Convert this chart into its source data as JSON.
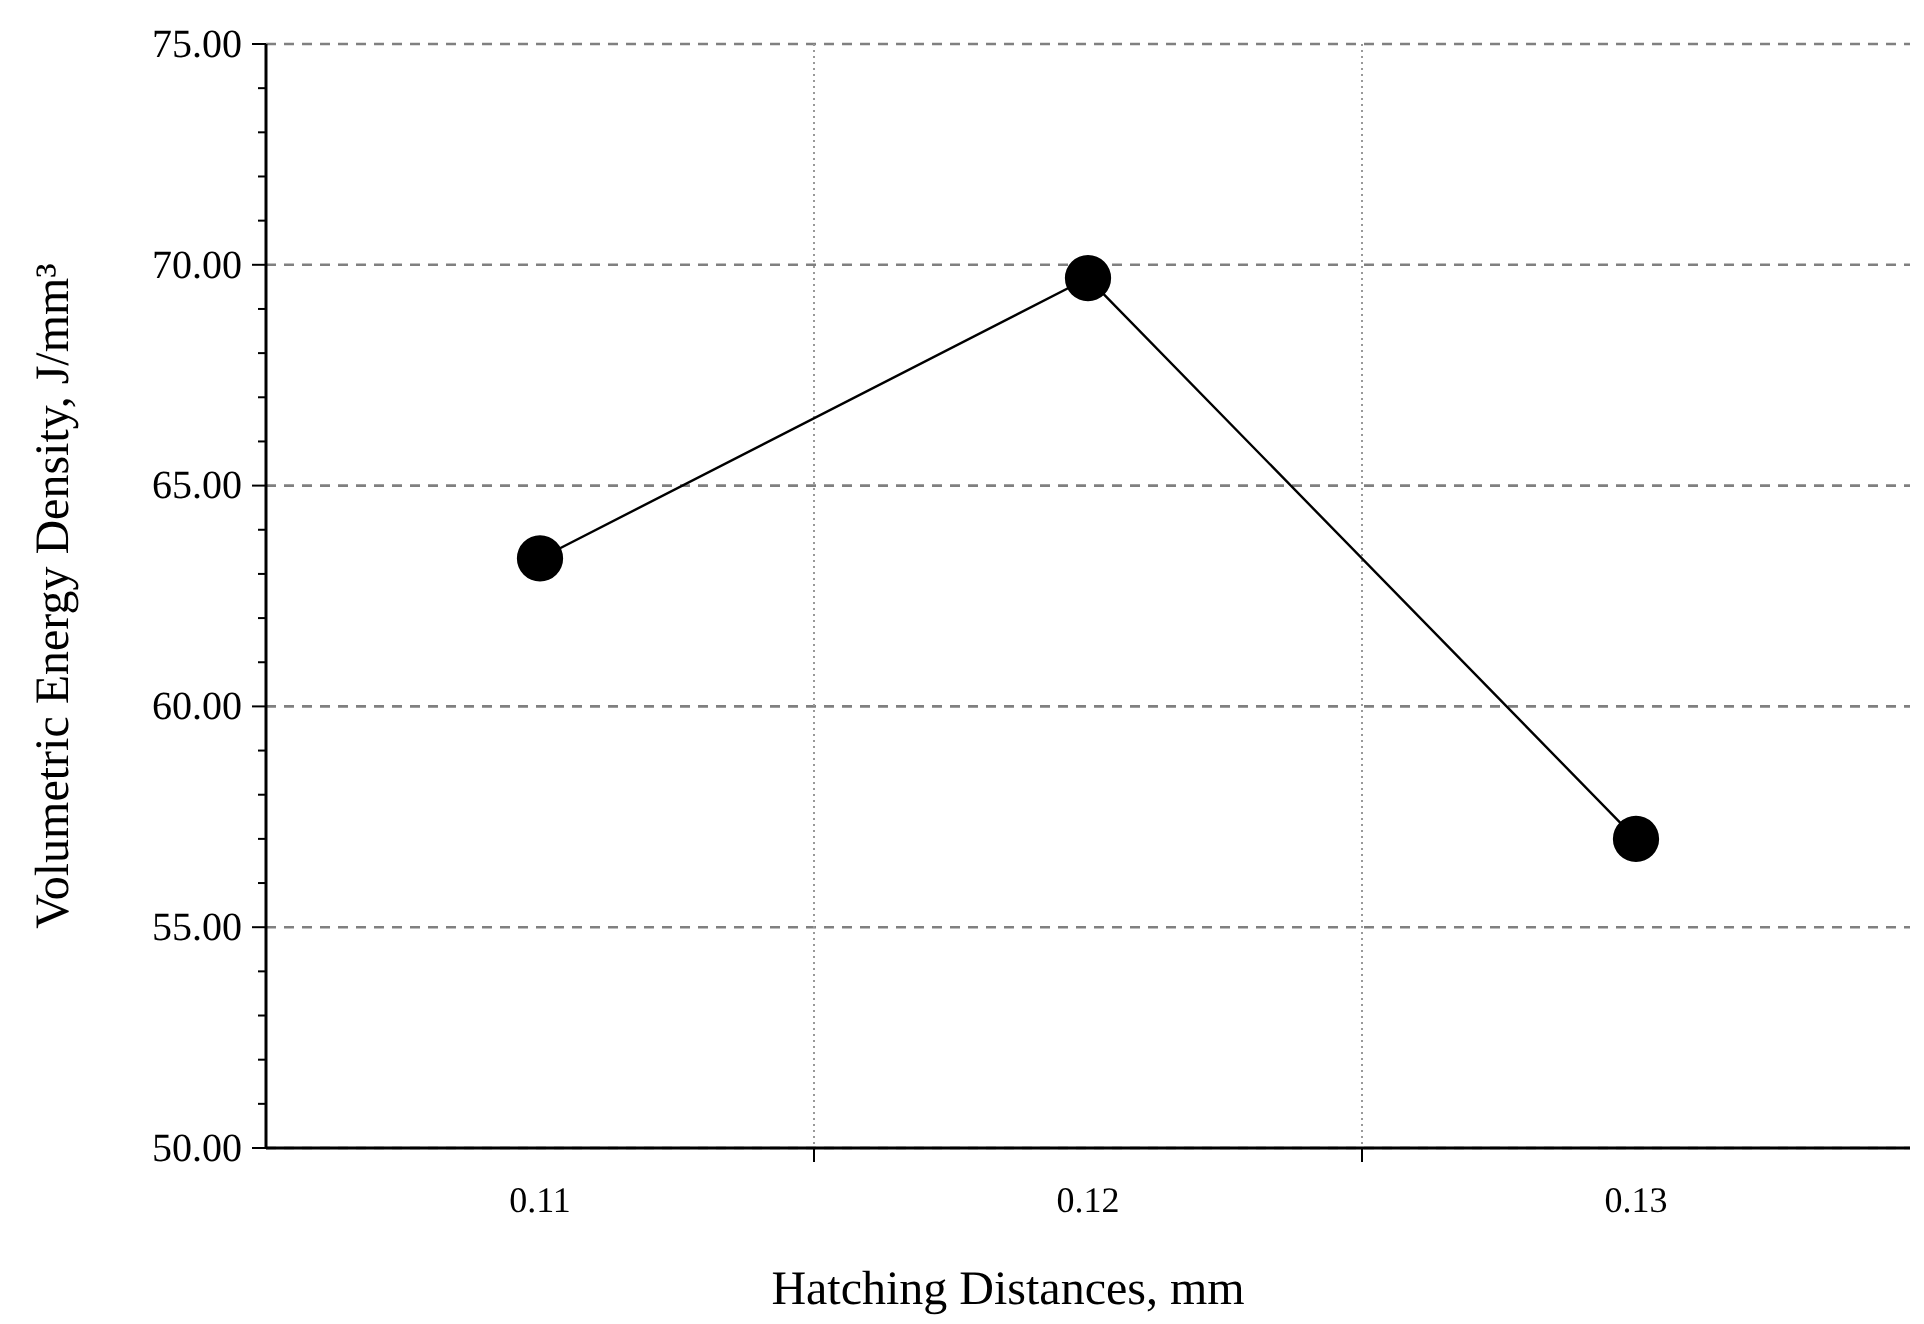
{
  "chart_data": {
    "type": "line",
    "xlabel": "Hatching Distances, mm",
    "ylabel": "Volumetric Energy Density, J/mm³",
    "categories": [
      "0.11",
      "0.12",
      "0.13"
    ],
    "series": [
      {
        "color": "#000000",
        "values": [
          63.35,
          69.7,
          57.0
        ]
      }
    ],
    "ylim": [
      50,
      75
    ],
    "yticks": [
      {
        "value": 50,
        "label": "50.00"
      },
      {
        "value": 51,
        "label": null
      },
      {
        "value": 52,
        "label": null
      },
      {
        "value": 53,
        "label": null
      },
      {
        "value": 54,
        "label": null
      },
      {
        "value": 55,
        "label": "55.00"
      },
      {
        "value": 56,
        "label": null
      },
      {
        "value": 57,
        "label": null
      },
      {
        "value": 58,
        "label": null
      },
      {
        "value": 59,
        "label": null
      },
      {
        "value": 60,
        "label": "60.00"
      },
      {
        "value": 61,
        "label": null
      },
      {
        "value": 62,
        "label": null
      },
      {
        "value": 63,
        "label": null
      },
      {
        "value": 64,
        "label": null
      },
      {
        "value": 65,
        "label": "65.00"
      },
      {
        "value": 66,
        "label": null
      },
      {
        "value": 67,
        "label": null
      },
      {
        "value": 68,
        "label": null
      },
      {
        "value": 69,
        "label": null
      },
      {
        "value": 70,
        "label": "70.00"
      },
      {
        "value": 71,
        "label": null
      },
      {
        "value": 72,
        "label": null
      },
      {
        "value": 73,
        "label": null
      },
      {
        "value": 74,
        "label": null
      },
      {
        "value": 75,
        "label": "75.00"
      }
    ],
    "grid": true,
    "marker": "circle",
    "line_style": "solid"
  }
}
